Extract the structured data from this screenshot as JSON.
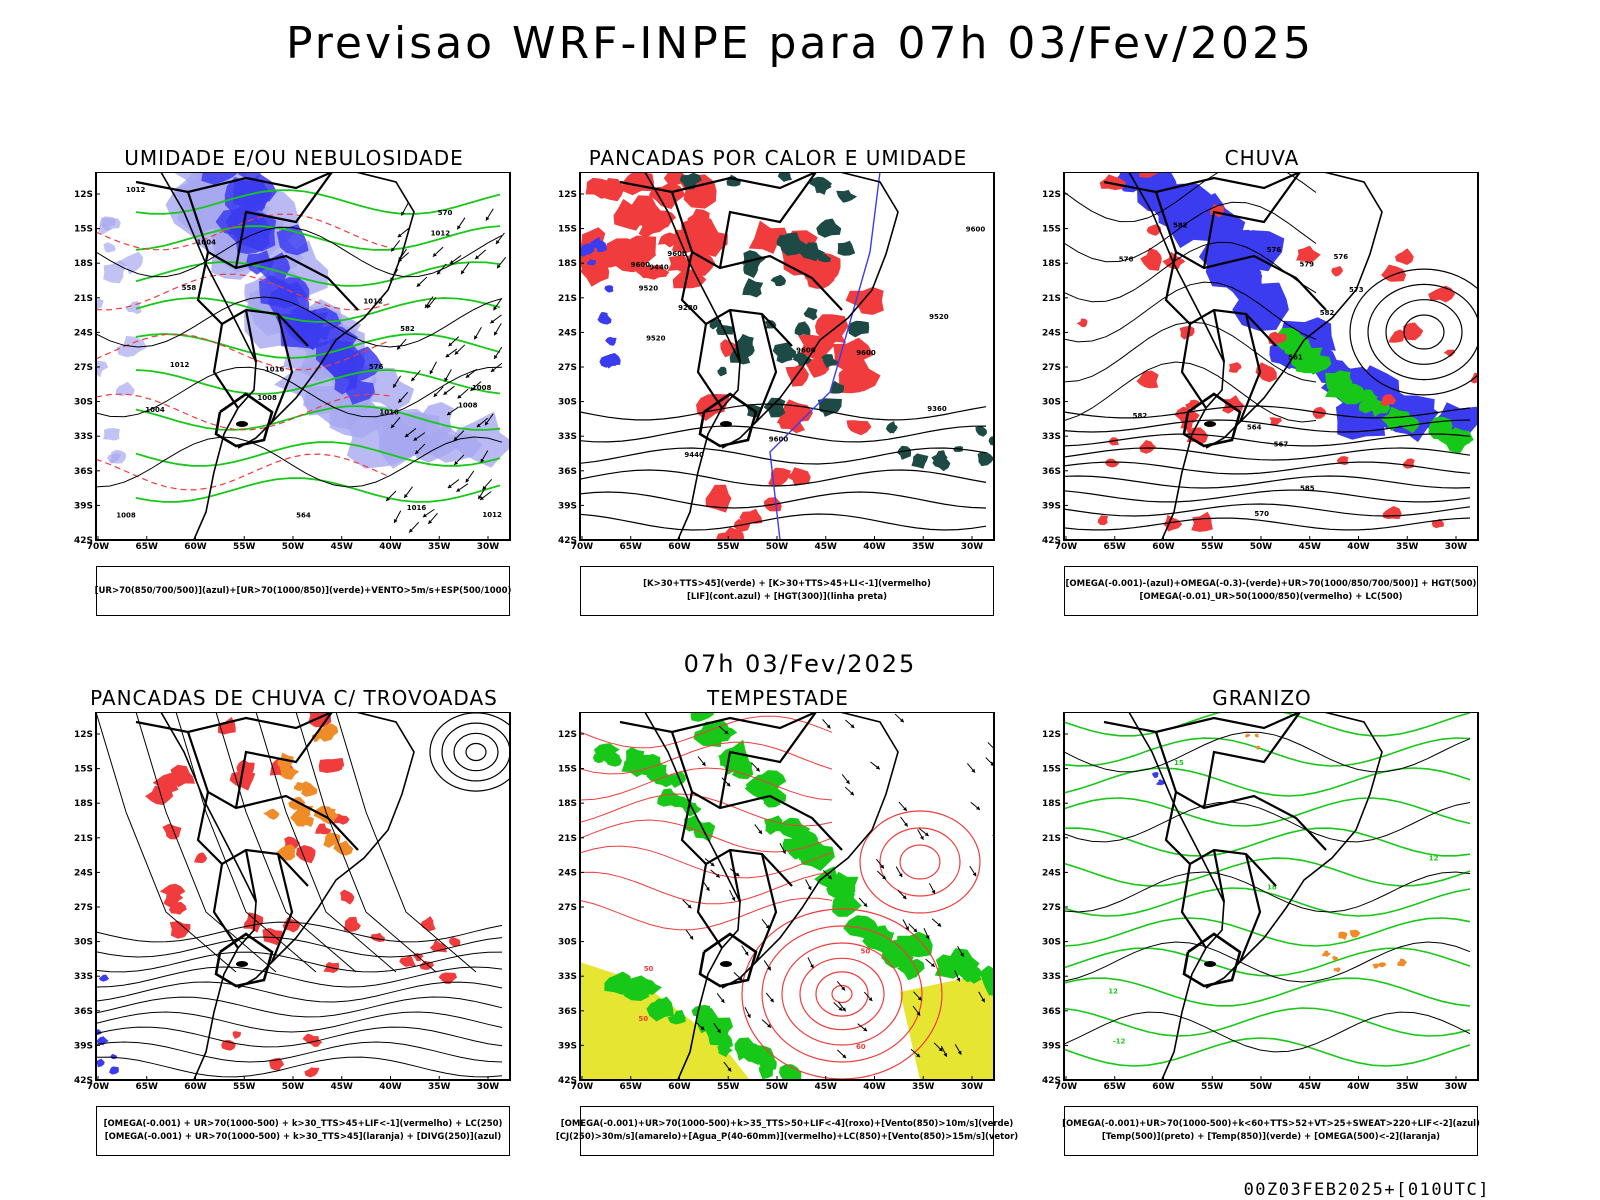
{
  "header": {
    "title": "Previsao WRF-INPE  para 07h 03/Fev/2025"
  },
  "mid_title": "07h 03/Fev/2025",
  "footer": {
    "run_code": "00Z03FEB2025+[010UTC]"
  },
  "axes": {
    "lat_ticks": [
      "12S",
      "15S",
      "18S",
      "21S",
      "24S",
      "27S",
      "30S",
      "33S",
      "36S",
      "39S",
      "42S"
    ],
    "lon_ticks": [
      "70W",
      "65W",
      "60W",
      "55W",
      "50W",
      "45W",
      "40W",
      "35W",
      "30W"
    ]
  },
  "panels": [
    {
      "title": "UMIDADE E/OU NEBULOSIDADE",
      "caption": [
        "[UR>70(850/700/500)](azul)+[UR>70(1000/850)](verde)+VENTO>5m/s+ESP(500/1000)"
      ],
      "labels": [
        "1012",
        "1008",
        "1012",
        "1016",
        "1004",
        "1008",
        "1016",
        "1012",
        "1016",
        "1008",
        "1012",
        "576",
        "570",
        "564",
        "558",
        "582",
        "1008",
        "1004",
        "1012"
      ]
    },
    {
      "title": "PANCADAS POR CALOR E UMIDADE",
      "caption": [
        "[K>30+TTS>45](verde) + [K>30+TTS>45+LI<-1](vermelho)",
        "[LIF](cont.azul) + [HGT(300)](linha preta)"
      ],
      "labels": [
        "9600",
        "9600",
        "9520",
        "9600",
        "9600",
        "9600",
        "9600",
        "9520",
        "9520",
        "9360",
        "9280",
        "9440",
        "9440"
      ]
    },
    {
      "title": "CHUVA",
      "caption": [
        "[OMEGA(-0.001)-(azul)+OMEGA(-0.3)-(verde)+UR>70(1000/850/700/500)] + HGT(500)",
        "[OMEGA(-0.01)_UR>50(1000/850)(vermelho) + LC(500)"
      ],
      "labels": [
        "582",
        "582",
        "582",
        "585",
        "576",
        "576",
        "579",
        "576",
        "573",
        "570",
        "567",
        "564",
        "561"
      ]
    },
    {
      "title": "PANCADAS DE CHUVA C/ TROVOADAS",
      "caption": [
        "[OMEGA(-0.001) + UR>70(1000-500) + k>30_TTS>45+LIF<-1](vermelho) + LC(250)",
        "[OMEGA(-0.001) + UR>70(1000-500) + k>30_TTS>45](laranja) + [DIVG(250)](azul)"
      ],
      "labels": []
    },
    {
      "title": "TEMPESTADE",
      "caption": [
        "[OMEGA(-0.001)+UR>70(1000-500)+k>35_TTS>50+LIF<-4](roxo)+[Vento(850)>10m/s](verde)",
        "[CJ(250)>30m/s](amarelo)+[Agua_P(40-60mm)](vermelho)+LC(850)+[Vento(850)>15m/s](vetor)"
      ],
      "labels": [
        "50",
        "50",
        "60",
        "50"
      ]
    },
    {
      "title": "GRANIZO",
      "caption": [
        "[OMEGA(-0.001)+UR>70(1000-500)+k<60+TTS>52+VT>25+SWEAT>220+LIF<-2](azul)",
        "[Temp(500)](preto) + [Temp(850)](verde) + [OMEGA(500)<-2](laranja)"
      ],
      "labels": [
        "-12",
        "15",
        "18",
        "12",
        "12"
      ]
    }
  ],
  "colors": {
    "blue": "#3b3bf0",
    "lightblue": "#a8a8f0",
    "green": "#18c818",
    "red": "#f03c3c",
    "orange": "#f08c28",
    "yellow": "#e6e632",
    "darkteal": "#1e4a46",
    "black": "#000000"
  }
}
